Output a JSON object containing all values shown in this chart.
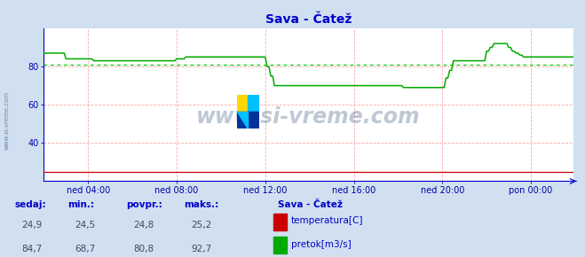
{
  "title": "Sava - Čatež",
  "title_color": "#0000cc",
  "bg_color": "#d0e0f0",
  "plot_bg_color": "#ffffff",
  "fig_width": 6.59,
  "fig_height": 2.9,
  "dpi": 100,
  "ylim": [
    20,
    100
  ],
  "yticks": [
    40,
    60,
    80
  ],
  "xlim": [
    0,
    287
  ],
  "xtick_positions": [
    24,
    72,
    120,
    168,
    216,
    264
  ],
  "xtick_labels": [
    "ned 04:00",
    "ned 08:00",
    "ned 12:00",
    "ned 16:00",
    "ned 20:00",
    "pon 00:00"
  ],
  "grid_color": "#ffaaaa",
  "avg_line_color": "#00cc00",
  "avg_line_value": 80.8,
  "watermark": "www.si-vreme.com",
  "watermark_color": "#1a3a6a",
  "watermark_alpha": 0.28,
  "temp_color": "#cc0000",
  "flow_color": "#00aa00",
  "temp_min": 24.5,
  "temp_max": 25.2,
  "temp_avg": 24.8,
  "temp_last": 24.9,
  "flow_min": 68.7,
  "flow_max": 92.7,
  "flow_avg": 80.8,
  "flow_last": 84.7,
  "axis_color": "#0000cc",
  "tick_label_color": "#0000aa",
  "label_color": "#0000cc",
  "flow_data": [
    87,
    87,
    87,
    87,
    87,
    87,
    87,
    87,
    87,
    87,
    87,
    87,
    84,
    84,
    84,
    84,
    84,
    84,
    84,
    84,
    84,
    84,
    84,
    84,
    84,
    84,
    84,
    83,
    83,
    83,
    83,
    83,
    83,
    83,
    83,
    83,
    83,
    83,
    83,
    83,
    83,
    83,
    83,
    83,
    83,
    83,
    83,
    83,
    83,
    83,
    83,
    83,
    83,
    83,
    83,
    83,
    83,
    83,
    83,
    83,
    83,
    83,
    83,
    83,
    83,
    83,
    83,
    83,
    83,
    83,
    83,
    83,
    84,
    84,
    84,
    84,
    84,
    85,
    85,
    85,
    85,
    85,
    85,
    85,
    85,
    85,
    85,
    85,
    85,
    85,
    85,
    85,
    85,
    85,
    85,
    85,
    85,
    85,
    85,
    85,
    85,
    85,
    85,
    85,
    85,
    85,
    85,
    85,
    85,
    85,
    85,
    85,
    85,
    85,
    85,
    85,
    85,
    85,
    85,
    85,
    85,
    80,
    80,
    75,
    75,
    70,
    70,
    70,
    70,
    70,
    70,
    70,
    70,
    70,
    70,
    70,
    70,
    70,
    70,
    70,
    70,
    70,
    70,
    70,
    70,
    70,
    70,
    70,
    70,
    70,
    70,
    70,
    70,
    70,
    70,
    70,
    70,
    70,
    70,
    70,
    70,
    70,
    70,
    70,
    70,
    70,
    70,
    70,
    70,
    70,
    70,
    70,
    70,
    70,
    70,
    70,
    70,
    70,
    70,
    70,
    70,
    70,
    70,
    70,
    70,
    70,
    70,
    70,
    70,
    70,
    70,
    70,
    70,
    70,
    70,
    69,
    69,
    69,
    69,
    69,
    69,
    69,
    69,
    69,
    69,
    69,
    69,
    69,
    69,
    69,
    69,
    69,
    69,
    69,
    69,
    69,
    69,
    69,
    74,
    74,
    78,
    78,
    83,
    83,
    83,
    83,
    83,
    83,
    83,
    83,
    83,
    83,
    83,
    83,
    83,
    83,
    83,
    83,
    83,
    83,
    88,
    88,
    90,
    90,
    92,
    92,
    92,
    92,
    92,
    92,
    92,
    92,
    90,
    90,
    88,
    88,
    87,
    87,
    86,
    86,
    85,
    85,
    85,
    85,
    85,
    85,
    85,
    85,
    85,
    85,
    85,
    85,
    85,
    85,
    85,
    85,
    85,
    85,
    85,
    85,
    85,
    85,
    85,
    85,
    85,
    85,
    85,
    85
  ],
  "temp_data": [
    25,
    25,
    25,
    25,
    25,
    25,
    25,
    25,
    25,
    25,
    25,
    25,
    25,
    25,
    25,
    25,
    25,
    25,
    25,
    25,
    25,
    25,
    25,
    25,
    25,
    25,
    25,
    25,
    25,
    25,
    25,
    25,
    25,
    25,
    25,
    25,
    25,
    25,
    25,
    25,
    25,
    25,
    25,
    25,
    25,
    25,
    25,
    25,
    25,
    25,
    25,
    25,
    25,
    25,
    25,
    25,
    25,
    25,
    25,
    25,
    25,
    25,
    25,
    25,
    25,
    25,
    25,
    25,
    25,
    25,
    25,
    25,
    25,
    25,
    25,
    25,
    25,
    25,
    25,
    25,
    25,
    25,
    25,
    25,
    25,
    25,
    25,
    25,
    25,
    25,
    25,
    25,
    25,
    25,
    25,
    25,
    25,
    25,
    25,
    25,
    25,
    25,
    25,
    25,
    25,
    25,
    25,
    25,
    25,
    25,
    25,
    25,
    25,
    25,
    25,
    25,
    25,
    25,
    25,
    25,
    25,
    25,
    25,
    25,
    25,
    25,
    25,
    25,
    25,
    25,
    25,
    25,
    25,
    25,
    25,
    25,
    25,
    25,
    25,
    25,
    25,
    25,
    25,
    25,
    25,
    25,
    25,
    25,
    25,
    25,
    25,
    25,
    25,
    25,
    25,
    25,
    25,
    25,
    25,
    25,
    25,
    25,
    25,
    25,
    25,
    25,
    25,
    25,
    25,
    25,
    25,
    25,
    25,
    25,
    25,
    25,
    25,
    25,
    25,
    25,
    25,
    25,
    25,
    25,
    25,
    25,
    25,
    25,
    25,
    25,
    25,
    25,
    25,
    25,
    25,
    25,
    25,
    25,
    25,
    25,
    25,
    25,
    25,
    25,
    25,
    25,
    25,
    25,
    25,
    25,
    25,
    25,
    25,
    25,
    25,
    25,
    25,
    25,
    25,
    25,
    25,
    25,
    25,
    25,
    25,
    25,
    25,
    25,
    25,
    25,
    25,
    25,
    25,
    25,
    25,
    25,
    25,
    25,
    25,
    25,
    25,
    25,
    25,
    25,
    25,
    25,
    25,
    25,
    25,
    25,
    25,
    25,
    25,
    25,
    25,
    25,
    25,
    25,
    25,
    25,
    25,
    25,
    25,
    25,
    25,
    25,
    25,
    25,
    25,
    25,
    25,
    25,
    25,
    25,
    25,
    25,
    25,
    25,
    25,
    25,
    25,
    25,
    25,
    25,
    25,
    25,
    25,
    25
  ]
}
